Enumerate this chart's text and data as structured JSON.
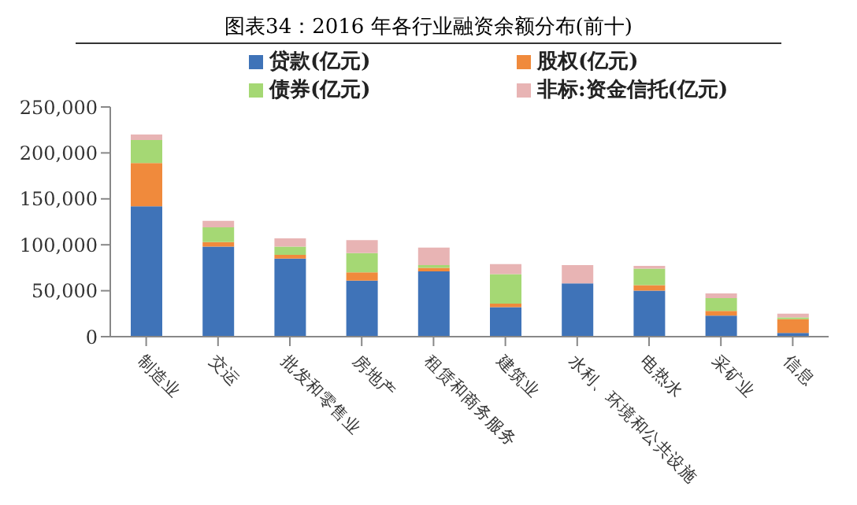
{
  "chart_data": {
    "type": "bar",
    "title": "图表34：2016 年各行业融资余额分布(前十)",
    "stacked": true,
    "legend": "top",
    "grid": false,
    "categories": [
      "制造业",
      "交运",
      "批发和零售业",
      "房地产",
      "租赁和商务服务",
      "建筑业",
      "水利、环境和公共设施",
      "电热水",
      "采矿业",
      "信息"
    ],
    "series": [
      {
        "name": "贷款(亿元)",
        "color": "#3f73b8",
        "values": [
          142000,
          98000,
          85000,
          61000,
          71000,
          32000,
          58000,
          50000,
          23000,
          4000
        ]
      },
      {
        "name": "股权(亿元)",
        "color": "#f08a3c",
        "values": [
          47000,
          5000,
          4000,
          9000,
          4000,
          4000,
          0,
          6000,
          5000,
          15000
        ]
      },
      {
        "name": "债券(亿元)",
        "color": "#a5d874",
        "values": [
          25000,
          16000,
          9000,
          21000,
          3000,
          32000,
          0,
          18000,
          14000,
          2000
        ]
      },
      {
        "name": "非标:资金信托(亿元)",
        "color": "#e8b4b4",
        "values": [
          6000,
          7000,
          9000,
          14000,
          19000,
          11000,
          20000,
          3000,
          5000,
          4000
        ]
      }
    ],
    "ylim": [
      0,
      250000
    ],
    "yticks": [
      0,
      {
        "value": 50000,
        "label": "50,000"
      },
      {
        "value": 100000,
        "label": "100,000"
      },
      {
        "value": 150000,
        "label": "150,000"
      },
      {
        "value": 200000,
        "label": "200,000"
      },
      {
        "value": 250000,
        "label": "250,000"
      }
    ]
  }
}
